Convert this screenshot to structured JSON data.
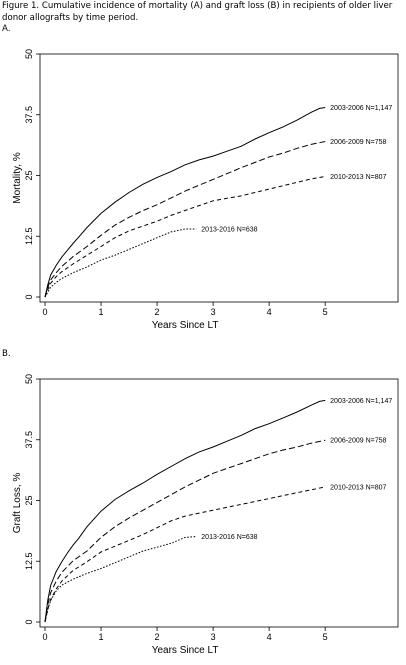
{
  "figure": {
    "caption": "Figure 1. Cumulative incidence of mortality (A) and graft loss (B) in recipients of older liver donor allografts by time period."
  },
  "chart_data": [
    {
      "type": "line",
      "panel_label": "A.",
      "title": "",
      "xlabel": "Years Since LT",
      "ylabel": "Mortality, %",
      "xlim": [
        0,
        6.3
      ],
      "ylim": [
        0,
        50
      ],
      "xticks": [
        0,
        1,
        2,
        3,
        4,
        5
      ],
      "xtick_labels": [
        "0",
        "1",
        "2",
        "3",
        "4",
        "5"
      ],
      "yticks": [
        0,
        12.5,
        25,
        37.5,
        50
      ],
      "ytick_labels": [
        "0",
        "12.5",
        "25",
        "37.5",
        "50"
      ],
      "grid": false,
      "legend": "inline labels at line ends",
      "series": [
        {
          "name": "2003-2006 N=1,147",
          "style": "solid",
          "x": [
            0,
            0.05,
            0.1,
            0.2,
            0.3,
            0.4,
            0.5,
            0.6,
            0.75,
            1.0,
            1.25,
            1.5,
            1.75,
            2.0,
            2.25,
            2.5,
            2.75,
            3.0,
            3.25,
            3.5,
            3.75,
            4.0,
            4.25,
            4.5,
            4.75,
            4.9,
            5.0
          ],
          "y": [
            0,
            2.5,
            4.5,
            6.5,
            8.2,
            9.6,
            11.0,
            12.3,
            14.3,
            17.2,
            19.5,
            21.5,
            23.2,
            24.6,
            25.8,
            27.2,
            28.2,
            29.0,
            30.0,
            31.0,
            32.5,
            33.8,
            35.0,
            36.4,
            38.0,
            38.8,
            39.0
          ]
        },
        {
          "name": "2006-2009 N=758",
          "style": "long-dash",
          "x": [
            0,
            0.05,
            0.1,
            0.2,
            0.3,
            0.5,
            0.75,
            1.0,
            1.25,
            1.5,
            1.75,
            2.0,
            2.25,
            2.5,
            2.75,
            3.0,
            3.25,
            3.5,
            3.75,
            4.0,
            4.25,
            4.5,
            4.75,
            5.0
          ],
          "y": [
            0,
            2.0,
            3.5,
            5.0,
            6.3,
            8.3,
            10.4,
            12.7,
            14.8,
            16.4,
            17.8,
            19.0,
            20.4,
            21.8,
            23.0,
            24.2,
            25.4,
            26.6,
            27.7,
            28.8,
            29.6,
            30.6,
            31.4,
            32.0
          ]
        },
        {
          "name": "2010-2013 N=807",
          "style": "dash",
          "x": [
            0,
            0.05,
            0.1,
            0.2,
            0.3,
            0.5,
            0.75,
            1.0,
            1.25,
            1.5,
            1.75,
            2.0,
            2.25,
            2.5,
            2.75,
            3.0,
            3.25,
            3.5,
            3.75,
            4.0,
            4.25,
            4.5,
            4.75,
            5.0
          ],
          "y": [
            0,
            1.5,
            2.8,
            4.2,
            5.2,
            6.8,
            8.6,
            10.4,
            12.2,
            13.6,
            14.6,
            15.6,
            16.8,
            17.8,
            18.8,
            19.8,
            20.3,
            20.8,
            21.5,
            22.2,
            22.9,
            23.6,
            24.3,
            24.8
          ]
        },
        {
          "name": "2013-2016 N=638",
          "style": "dot",
          "x": [
            0,
            0.05,
            0.1,
            0.2,
            0.3,
            0.5,
            0.75,
            1.0,
            1.25,
            1.5,
            1.75,
            2.0,
            2.25,
            2.5,
            2.7
          ],
          "y": [
            0,
            1.0,
            2.0,
            3.0,
            3.8,
            5.0,
            6.2,
            7.6,
            8.6,
            9.8,
            11.0,
            12.2,
            13.4,
            14.0,
            14.0
          ]
        }
      ]
    },
    {
      "type": "line",
      "panel_label": "B.",
      "title": "",
      "xlabel": "Years Since LT",
      "ylabel": "Graft Loss, %",
      "xlim": [
        0,
        6.3
      ],
      "ylim": [
        0,
        50
      ],
      "xticks": [
        0,
        1,
        2,
        3,
        4,
        5
      ],
      "xtick_labels": [
        "0",
        "1",
        "2",
        "3",
        "4",
        "5"
      ],
      "yticks": [
        0,
        12.5,
        25,
        37.5,
        50
      ],
      "ytick_labels": [
        "0",
        "12.5",
        "25",
        "37.5",
        "50"
      ],
      "grid": false,
      "legend": "inline labels at line ends",
      "series": [
        {
          "name": "2003-2006 N=1,147",
          "style": "solid",
          "x": [
            0,
            0.05,
            0.1,
            0.2,
            0.3,
            0.4,
            0.5,
            0.6,
            0.75,
            1.0,
            1.25,
            1.5,
            1.75,
            2.0,
            2.25,
            2.5,
            2.75,
            3.0,
            3.25,
            3.5,
            3.75,
            4.0,
            4.25,
            4.5,
            4.75,
            4.9,
            5.0
          ],
          "y": [
            0,
            4.5,
            7.5,
            10.4,
            12.4,
            14.2,
            15.8,
            17.2,
            19.6,
            22.8,
            25.2,
            27.0,
            28.6,
            30.4,
            32.0,
            33.6,
            35.0,
            36.0,
            37.2,
            38.4,
            39.8,
            40.8,
            42.0,
            43.2,
            44.6,
            45.4,
            45.6
          ]
        },
        {
          "name": "2006-2009 N=758",
          "style": "long-dash",
          "x": [
            0,
            0.05,
            0.1,
            0.2,
            0.3,
            0.5,
            0.75,
            1.0,
            1.25,
            1.5,
            1.75,
            2.0,
            2.25,
            2.5,
            2.75,
            3.0,
            3.25,
            3.5,
            3.75,
            4.0,
            4.25,
            4.5,
            4.75,
            5.0
          ],
          "y": [
            0,
            3.6,
            6.0,
            8.4,
            10.2,
            12.6,
            14.6,
            17.4,
            19.6,
            21.4,
            23.0,
            24.6,
            26.2,
            27.8,
            29.2,
            30.6,
            31.6,
            32.6,
            33.6,
            34.6,
            35.4,
            36.0,
            36.8,
            37.4
          ]
        },
        {
          "name": "2010-2013 N=807",
          "style": "dash",
          "x": [
            0,
            0.05,
            0.1,
            0.2,
            0.3,
            0.5,
            0.75,
            1.0,
            1.25,
            1.5,
            1.75,
            2.0,
            2.25,
            2.5,
            2.75,
            3.0,
            3.25,
            3.5,
            3.75,
            4.0,
            4.25,
            4.5,
            4.75,
            5.0
          ],
          "y": [
            0,
            2.6,
            4.6,
            6.8,
            8.4,
            10.6,
            12.4,
            14.4,
            15.6,
            16.8,
            18.0,
            19.4,
            20.8,
            21.8,
            22.4,
            23.0,
            23.6,
            24.2,
            24.8,
            25.4,
            26.0,
            26.6,
            27.2,
            27.8
          ]
        },
        {
          "name": "2013-2016 N=638",
          "style": "dot",
          "x": [
            0,
            0.05,
            0.1,
            0.2,
            0.3,
            0.5,
            0.75,
            1.0,
            1.25,
            1.5,
            1.75,
            2.0,
            2.25,
            2.5,
            2.7
          ],
          "y": [
            0,
            2.6,
            4.4,
            6.4,
            7.6,
            8.8,
            10.0,
            11.0,
            12.2,
            13.4,
            14.6,
            15.4,
            16.2,
            17.4,
            17.6
          ]
        }
      ]
    }
  ]
}
